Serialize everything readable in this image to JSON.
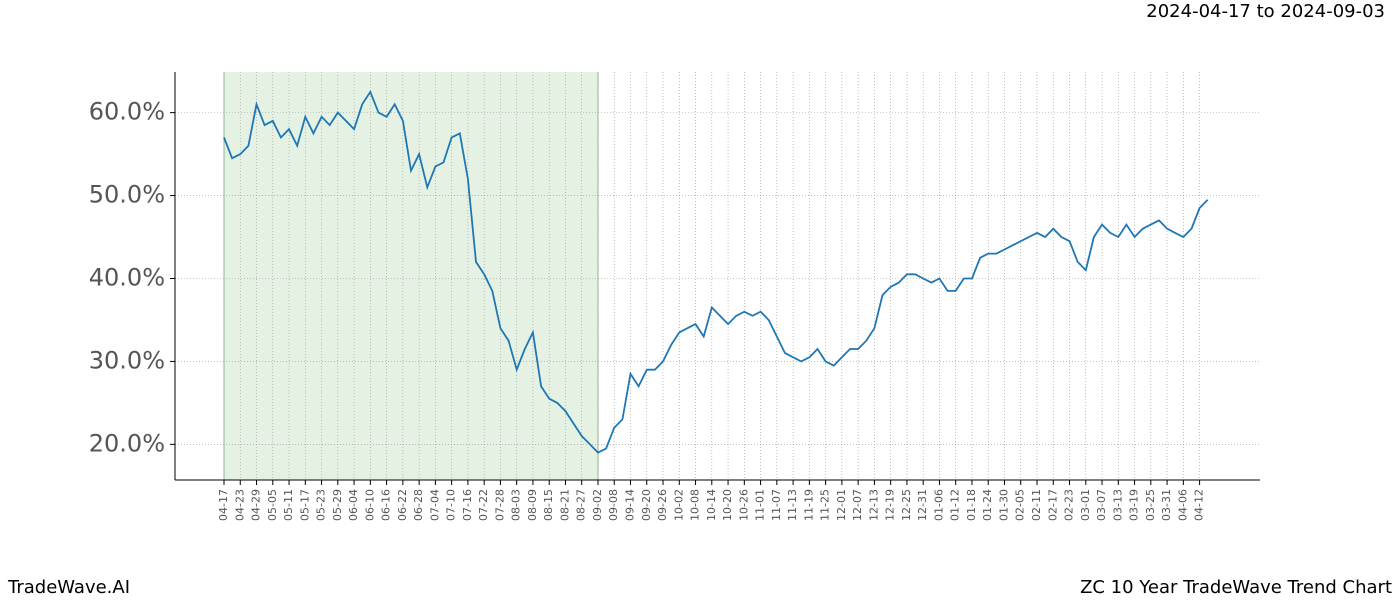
{
  "header": {
    "date_range": "2024-04-17 to 2024-09-03"
  },
  "footer": {
    "brand": "TradeWave.AI",
    "title": "ZC 10 Year TradeWave Trend Chart"
  },
  "chart_data": {
    "type": "line",
    "categories": [
      "04-17",
      null,
      "04-23",
      null,
      "04-29",
      null,
      "05-05",
      null,
      "05-11",
      null,
      "05-17",
      null,
      "05-23",
      null,
      "05-29",
      null,
      "06-04",
      null,
      "06-10",
      null,
      "06-16",
      null,
      "06-22",
      null,
      "06-28",
      null,
      "07-04",
      null,
      "07-10",
      null,
      "07-16",
      null,
      "07-22",
      null,
      "07-28",
      null,
      "08-03",
      null,
      "08-09",
      null,
      "08-15",
      null,
      "08-21",
      null,
      "08-27",
      null,
      "09-02",
      null,
      "09-08",
      null,
      "09-14",
      null,
      "09-20",
      null,
      "09-26",
      null,
      "10-02",
      null,
      "10-08",
      null,
      "10-14",
      null,
      "10-20",
      null,
      "10-26",
      null,
      "11-01",
      null,
      "11-07",
      null,
      "11-13",
      null,
      "11-19",
      null,
      "11-25",
      null,
      "12-01",
      null,
      "12-07",
      null,
      "12-13",
      null,
      "12-19",
      null,
      "12-25",
      null,
      "12-31",
      null,
      "01-06",
      null,
      "01-12",
      null,
      "01-18",
      null,
      "01-24",
      null,
      "01-30",
      null,
      "02-05",
      null,
      "02-11",
      null,
      "02-17",
      null,
      "02-23",
      null,
      "03-01",
      null,
      "03-07",
      null,
      "03-13",
      null,
      "03-19",
      null,
      "03-25",
      null,
      "03-31",
      null,
      "04-06",
      null,
      "04-12",
      null
    ],
    "series": [
      {
        "color": "#1f77b4",
        "values": [
          57,
          54.5,
          55,
          56,
          61,
          58.5,
          59,
          57,
          58,
          56,
          59.5,
          57.5,
          59.5,
          58.5,
          60,
          59,
          58,
          61,
          62.5,
          60,
          59.5,
          61,
          59,
          53,
          55,
          51,
          53.5,
          54,
          57,
          57.5,
          52,
          42,
          40.5,
          38.5,
          34,
          32.5,
          29,
          31.5,
          33.5,
          27,
          25.5,
          25,
          24,
          22.5,
          21,
          20,
          19,
          19.5,
          22,
          23,
          28.5,
          27,
          29,
          29,
          30,
          32,
          33.5,
          34,
          34.5,
          33,
          36.5,
          35.5,
          34.5,
          35.5,
          36,
          35.5,
          36,
          35,
          33,
          31,
          30.5,
          30,
          30.5,
          31.5,
          30,
          29.5,
          30.5,
          31.5,
          31.5,
          32.5,
          34,
          38,
          39,
          39.5,
          40.5,
          40.5,
          40,
          39.5,
          40,
          38.5,
          38.5,
          40,
          40,
          42.5,
          43,
          43,
          43.5,
          44,
          44.5,
          45,
          45.5,
          45,
          46,
          45,
          44.5,
          42,
          41,
          45,
          46.5,
          45.5,
          45,
          46.5,
          45,
          46,
          46.5,
          47,
          46,
          45.5,
          45,
          46,
          48.5,
          49.5
        ]
      }
    ],
    "ylim": [
      15.7,
      64.9
    ],
    "yticks": [
      {
        "value": 20,
        "label": "20.0%"
      },
      {
        "value": 30,
        "label": "30.0%"
      },
      {
        "value": 40,
        "label": "40.0%"
      },
      {
        "value": 50,
        "label": "50.0%"
      },
      {
        "value": 60,
        "label": "60.0%"
      }
    ],
    "highlight": {
      "start": "04-17",
      "end": "09-02",
      "color": "#e5f1e3"
    },
    "grid": true
  }
}
